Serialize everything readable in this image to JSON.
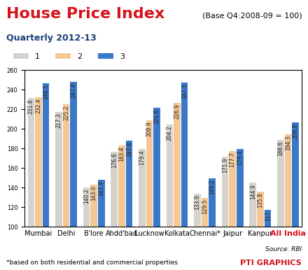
{
  "chart_data": {
    "type": "bar",
    "title": "House Price Index",
    "subtitle": "(Base Q4:2008-09 = 100)",
    "annotations": [
      "Quarterly 2012-13",
      "*based on both residential and commercial properties",
      "Source: RBI",
      "PTI GRAPHICS"
    ],
    "categories": [
      "Mumbai",
      "Delhi",
      "B'lore",
      "Ahdd'bad",
      "Lucknow",
      "Kolkata",
      "Chennai*",
      "Jaipur",
      "Kanpur",
      "All India"
    ],
    "series": [
      {
        "name": "1",
        "color": "#d6d3cc",
        "values": [
          231.8,
          217.3,
          140.2,
          176.6,
          179.4,
          204.2,
          133.9,
          171.9,
          144.9,
          188.6
        ]
      },
      {
        "name": "2",
        "color": "#f4c896",
        "values": [
          232.4,
          225.2,
          143.0,
          183.4,
          208.9,
          226.9,
          129.5,
          177.7,
          135.8,
          194.3
        ]
      },
      {
        "name": "3",
        "color": "#3a78c9",
        "values": [
          246.5,
          247.8,
          147.9,
          187.8,
          221.6,
          247.3,
          149.2,
          179.4,
          117,
          206.8
        ]
      }
    ],
    "ylim": [
      100,
      260
    ],
    "yticks": [
      100,
      120,
      140,
      160,
      180,
      200,
      220,
      240,
      260
    ],
    "grid": false,
    "legend": "upper left",
    "data_labels": true
  }
}
